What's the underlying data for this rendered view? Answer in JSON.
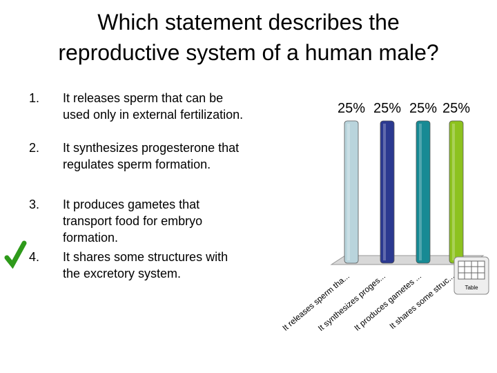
{
  "title": [
    "Which statement describes the",
    "reproductive system of a human male?"
  ],
  "options": [
    {
      "number": "1.",
      "text": "It releases sperm that can be used only in external fertilization."
    },
    {
      "number": "2.",
      "text": "It synthesizes progesterone that regulates sperm formation."
    },
    {
      "number": "3.",
      "text": "It produces gametes that transport food for embryo formation."
    },
    {
      "number": "4.",
      "text": "It shares some structures with the excretory system."
    }
  ],
  "table_button": "Table",
  "chart_data": {
    "type": "bar",
    "categories": [
      "It releases sperm tha...",
      "It synthesizes proges...",
      "It produces gametes ...",
      "It shares some struc..."
    ],
    "values": [
      25,
      25,
      25,
      25
    ],
    "value_labels": [
      "25%",
      "25%",
      "25%",
      "25%"
    ],
    "colors": [
      "#b9d4dc",
      "#2b3990",
      "#178a94",
      "#8dc21f"
    ]
  }
}
